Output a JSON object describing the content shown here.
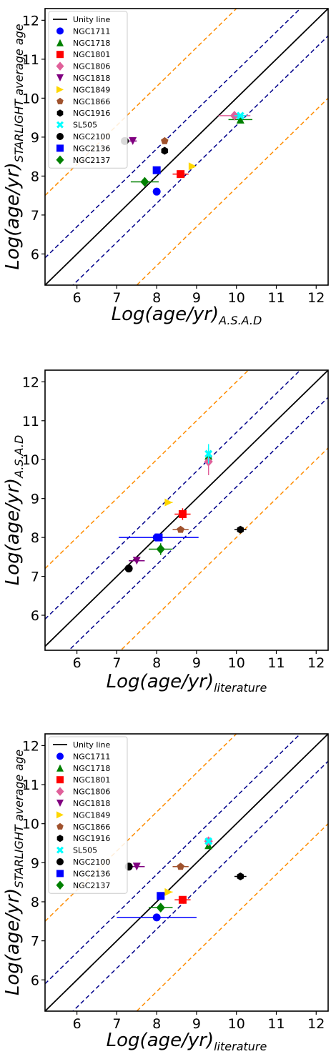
{
  "colors": {
    "unity": "#000000",
    "blue_band": "#00008b",
    "orange_band": "#ff8c00",
    "NGC1711": "#0000ff",
    "NGC1718": "#008000",
    "NGC1801": "#ff0000",
    "NGC1806": "#e0609a",
    "NGC1818": "#800080",
    "NGC1849": "#ffd700",
    "NGC1866": "#a0522d",
    "NGC1916": "#000000",
    "SL505": "#00ffff",
    "NGC2100": "#000000",
    "NGC2136": "#0000ff",
    "NGC2137": "#008000"
  },
  "legend_labels": [
    "Unity line",
    "NGC1711",
    "NGC1718",
    "NGC1801",
    "NGC1806",
    "NGC1818",
    "NGC1849",
    "NGC1866",
    "NGC1916",
    "SL505",
    "NGC2100",
    "NGC2136",
    "NGC2137"
  ],
  "chart_data": [
    {
      "type": "scatter",
      "xlabel_main": "Log(age/yr)",
      "xlabel_sub": "A.S.A.D",
      "ylabel_main": "Log(age/yr)",
      "ylabel_sub": "STARLIGHT average age",
      "xlim": [
        5.2,
        12.3
      ],
      "ylim": [
        5.2,
        12.3
      ],
      "xticks": [
        "6",
        "7",
        "8",
        "9",
        "10",
        "11",
        "12"
      ],
      "yticks": [
        "6",
        "7",
        "8",
        "9",
        "10",
        "11",
        "12"
      ],
      "legend": "top-left",
      "lines": {
        "unity_offset": 0,
        "blue_offsets": [
          0.7,
          -0.7
        ],
        "orange_offsets": [
          2.3,
          -2.3
        ]
      },
      "series": [
        {
          "name": "NGC1711",
          "marker": "circle",
          "x": 8.0,
          "y": 7.6,
          "xerr": 0,
          "yerr": 0
        },
        {
          "name": "NGC1718",
          "marker": "triangle-up",
          "x": 10.1,
          "y": 9.45,
          "xerr": 0.3,
          "yerr": 0
        },
        {
          "name": "NGC1801",
          "marker": "square",
          "x": 8.6,
          "y": 8.05,
          "xerr": 0.2,
          "yerr": 0
        },
        {
          "name": "NGC1806",
          "marker": "diamond",
          "x": 9.95,
          "y": 9.55,
          "xerr": 0.4,
          "yerr": 0
        },
        {
          "name": "NGC1818",
          "marker": "triangle-down",
          "x": 7.4,
          "y": 8.9,
          "xerr": 0.1,
          "yerr": 0
        },
        {
          "name": "NGC1849",
          "marker": "triangle-right",
          "x": 8.9,
          "y": 8.25,
          "xerr": 0,
          "yerr": 0
        },
        {
          "name": "NGC1866",
          "marker": "pentagon",
          "x": 8.2,
          "y": 8.9,
          "xerr": 0,
          "yerr": 0
        },
        {
          "name": "NGC1916",
          "marker": "hexagon",
          "x": 8.2,
          "y": 8.65,
          "xerr": 0,
          "yerr": 0
        },
        {
          "name": "SL505",
          "marker": "x",
          "x": 10.1,
          "y": 9.55,
          "xerr": 0.15,
          "yerr": 0
        },
        {
          "name": "NGC2100",
          "marker": "circle",
          "x": 7.2,
          "y": 8.9,
          "xerr": 0,
          "yerr": 0
        },
        {
          "name": "NGC2136",
          "marker": "square",
          "x": 8.0,
          "y": 8.15,
          "xerr": 0,
          "yerr": 0
        },
        {
          "name": "NGC2137",
          "marker": "diamond",
          "x": 7.7,
          "y": 7.85,
          "xerr": 0.35,
          "yerr": 0
        }
      ]
    },
    {
      "type": "scatter",
      "xlabel_main": "Log(age/yr)",
      "xlabel_sub": "literature",
      "ylabel_main": "Log(age/yr)",
      "ylabel_sub": "A.S.A.D",
      "xlim": [
        5.2,
        12.3
      ],
      "ylim": [
        5.1,
        12.3
      ],
      "xticks": [
        "6",
        "7",
        "8",
        "9",
        "10",
        "11",
        "12"
      ],
      "yticks": [
        "6",
        "7",
        "8",
        "9",
        "10",
        "11",
        "12"
      ],
      "legend": "",
      "lines": {
        "unity_offset": 0,
        "blue_offsets": [
          0.7,
          -0.7
        ],
        "orange_offsets": [
          2.0,
          -2.0
        ]
      },
      "series": [
        {
          "name": "NGC1711",
          "marker": "circle",
          "x": 8.0,
          "y": 8.0,
          "xerr": 0,
          "yerr": 0
        },
        {
          "name": "NGC1718",
          "marker": "triangle-up",
          "x": 9.3,
          "y": 10.1,
          "xerr": 0,
          "yerr": 0
        },
        {
          "name": "NGC1801",
          "marker": "square",
          "x": 8.65,
          "y": 8.6,
          "xerr": 0.2,
          "yerr": 0.15
        },
        {
          "name": "NGC1806",
          "marker": "diamond",
          "x": 9.3,
          "y": 9.95,
          "xerr": 0,
          "yerr": 0.35
        },
        {
          "name": "NGC1818",
          "marker": "triangle-down",
          "x": 7.5,
          "y": 7.4,
          "xerr": 0.2,
          "yerr": 0
        },
        {
          "name": "NGC1849",
          "marker": "triangle-right",
          "x": 8.3,
          "y": 8.9,
          "xerr": 0.1,
          "yerr": 0
        },
        {
          "name": "NGC1866",
          "marker": "pentagon",
          "x": 8.6,
          "y": 8.2,
          "xerr": 0.2,
          "yerr": 0
        },
        {
          "name": "NGC1916",
          "marker": "hexagon",
          "x": 10.1,
          "y": 8.2,
          "xerr": 0.15,
          "yerr": 0
        },
        {
          "name": "SL505",
          "marker": "x",
          "x": 9.3,
          "y": 10.15,
          "xerr": 0,
          "yerr": 0.25
        },
        {
          "name": "NGC2100",
          "marker": "circle",
          "x": 7.3,
          "y": 7.2,
          "xerr": 0,
          "yerr": 0
        },
        {
          "name": "NGC2136",
          "marker": "square",
          "x": 8.05,
          "y": 8.0,
          "xerr": 1.0,
          "yerr": 0
        },
        {
          "name": "NGC2137",
          "marker": "diamond",
          "x": 8.1,
          "y": 7.7,
          "xerr": 0.3,
          "yerr": 0.15
        }
      ]
    },
    {
      "type": "scatter",
      "xlabel_main": "Log(age/yr)",
      "xlabel_sub": "literature",
      "ylabel_main": "Log(age/yr)",
      "ylabel_sub": "STARLIGHT average age",
      "xlim": [
        5.2,
        12.3
      ],
      "ylim": [
        5.2,
        12.3
      ],
      "xticks": [
        "6",
        "7",
        "8",
        "9",
        "10",
        "11",
        "12"
      ],
      "yticks": [
        "6",
        "7",
        "8",
        "9",
        "10",
        "11",
        "12"
      ],
      "legend": "top-left",
      "lines": {
        "unity_offset": 0,
        "blue_offsets": [
          0.7,
          -0.7
        ],
        "orange_offsets": [
          2.3,
          -2.3
        ]
      },
      "series": [
        {
          "name": "NGC1711",
          "marker": "circle",
          "x": 8.0,
          "y": 7.6,
          "xerr": 1.0,
          "yerr": 0
        },
        {
          "name": "NGC1718",
          "marker": "triangle-up",
          "x": 9.3,
          "y": 9.45,
          "xerr": 0,
          "yerr": 0
        },
        {
          "name": "NGC1801",
          "marker": "square",
          "x": 8.65,
          "y": 8.05,
          "xerr": 0.2,
          "yerr": 0
        },
        {
          "name": "NGC1806",
          "marker": "diamond",
          "x": 9.3,
          "y": 9.55,
          "xerr": 0,
          "yerr": 0
        },
        {
          "name": "NGC1818",
          "marker": "triangle-down",
          "x": 7.5,
          "y": 8.9,
          "xerr": 0.2,
          "yerr": 0
        },
        {
          "name": "NGC1849",
          "marker": "triangle-right",
          "x": 8.3,
          "y": 8.25,
          "xerr": 0.1,
          "yerr": 0
        },
        {
          "name": "NGC1866",
          "marker": "pentagon",
          "x": 8.6,
          "y": 8.9,
          "xerr": 0.2,
          "yerr": 0
        },
        {
          "name": "NGC1916",
          "marker": "hexagon",
          "x": 10.1,
          "y": 8.65,
          "xerr": 0.15,
          "yerr": 0
        },
        {
          "name": "SL505",
          "marker": "x",
          "x": 9.3,
          "y": 9.55,
          "xerr": 0,
          "yerr": 0
        },
        {
          "name": "NGC2100",
          "marker": "circle",
          "x": 7.3,
          "y": 8.9,
          "xerr": 0,
          "yerr": 0
        },
        {
          "name": "NGC2136",
          "marker": "square",
          "x": 8.1,
          "y": 8.15,
          "xerr": 0,
          "yerr": 0
        },
        {
          "name": "NGC2137",
          "marker": "diamond",
          "x": 8.1,
          "y": 7.85,
          "xerr": 0.3,
          "yerr": 0
        }
      ]
    }
  ]
}
